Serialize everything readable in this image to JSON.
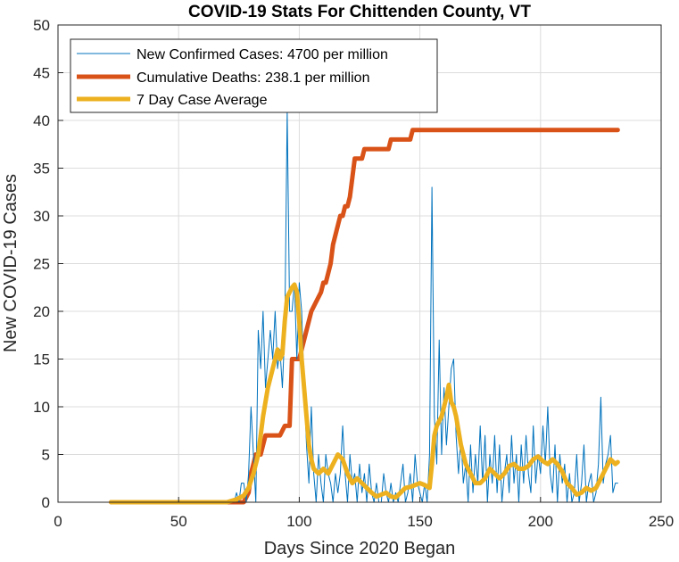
{
  "chart_data": {
    "type": "line",
    "title": "COVID-19 Stats For Chittenden County, VT",
    "xlabel": "Days Since 2020 Began",
    "ylabel": "New COVID-19 Cases",
    "xlim": [
      0,
      250
    ],
    "ylim": [
      0,
      50
    ],
    "xticks": [
      0,
      50,
      100,
      150,
      200,
      250
    ],
    "yticks": [
      0,
      5,
      10,
      15,
      20,
      25,
      30,
      35,
      40,
      45,
      50
    ],
    "grid": true,
    "legend_position": "top-left",
    "series": [
      {
        "name": "New Confirmed Cases: 4700 per million",
        "color": "#0072BD",
        "line": "thin",
        "points": [
          [
            22,
            0
          ],
          [
            30,
            0
          ],
          [
            40,
            0
          ],
          [
            50,
            0
          ],
          [
            60,
            0
          ],
          [
            70,
            0
          ],
          [
            73,
            0
          ],
          [
            74,
            1
          ],
          [
            75,
            0
          ],
          [
            76,
            2
          ],
          [
            77,
            2
          ],
          [
            78,
            0
          ],
          [
            79,
            3
          ],
          [
            80,
            10
          ],
          [
            81,
            5
          ],
          [
            82,
            0
          ],
          [
            83,
            18
          ],
          [
            84,
            14
          ],
          [
            85,
            20
          ],
          [
            86,
            12
          ],
          [
            87,
            15
          ],
          [
            88,
            18
          ],
          [
            89,
            15
          ],
          [
            90,
            20
          ],
          [
            91,
            14
          ],
          [
            92,
            16
          ],
          [
            93,
            12
          ],
          [
            94,
            18
          ],
          [
            95,
            41
          ],
          [
            96,
            20
          ],
          [
            97,
            20
          ],
          [
            98,
            23
          ],
          [
            99,
            15
          ],
          [
            100,
            23
          ],
          [
            101,
            20
          ],
          [
            102,
            12
          ],
          [
            103,
            6
          ],
          [
            104,
            2
          ],
          [
            105,
            10
          ],
          [
            106,
            3
          ],
          [
            107,
            0
          ],
          [
            108,
            5
          ],
          [
            109,
            2
          ],
          [
            110,
            0
          ],
          [
            111,
            5
          ],
          [
            112,
            3
          ],
          [
            113,
            2
          ],
          [
            114,
            0
          ],
          [
            115,
            3
          ],
          [
            116,
            1
          ],
          [
            117,
            3
          ],
          [
            118,
            8
          ],
          [
            119,
            3
          ],
          [
            120,
            0
          ],
          [
            121,
            5
          ],
          [
            122,
            2
          ],
          [
            123,
            3
          ],
          [
            124,
            0
          ],
          [
            125,
            4
          ],
          [
            126,
            1
          ],
          [
            127,
            3
          ],
          [
            128,
            0
          ],
          [
            129,
            4
          ],
          [
            130,
            1
          ],
          [
            131,
            0
          ],
          [
            132,
            2
          ],
          [
            133,
            0
          ],
          [
            134,
            0
          ],
          [
            135,
            3
          ],
          [
            136,
            1
          ],
          [
            137,
            0
          ],
          [
            138,
            2
          ],
          [
            139,
            0
          ],
          [
            140,
            1
          ],
          [
            141,
            0
          ],
          [
            142,
            2
          ],
          [
            143,
            4
          ],
          [
            144,
            0
          ],
          [
            145,
            1
          ],
          [
            146,
            3
          ],
          [
            147,
            0
          ],
          [
            148,
            5
          ],
          [
            149,
            2
          ],
          [
            150,
            1
          ],
          [
            151,
            0
          ],
          [
            152,
            2
          ],
          [
            153,
            0
          ],
          [
            154,
            5
          ],
          [
            155,
            33
          ],
          [
            156,
            9
          ],
          [
            157,
            4
          ],
          [
            158,
            17
          ],
          [
            159,
            5
          ],
          [
            160,
            12
          ],
          [
            161,
            6
          ],
          [
            162,
            10
          ],
          [
            163,
            14
          ],
          [
            164,
            15
          ],
          [
            165,
            7
          ],
          [
            166,
            3
          ],
          [
            167,
            7
          ],
          [
            168,
            2
          ],
          [
            169,
            4
          ],
          [
            170,
            0
          ],
          [
            171,
            6
          ],
          [
            172,
            1
          ],
          [
            173,
            5
          ],
          [
            174,
            2
          ],
          [
            175,
            8
          ],
          [
            176,
            2
          ],
          [
            177,
            7
          ],
          [
            178,
            0
          ],
          [
            179,
            5
          ],
          [
            180,
            2
          ],
          [
            181,
            7
          ],
          [
            182,
            1
          ],
          [
            183,
            6
          ],
          [
            184,
            0
          ],
          [
            185,
            3
          ],
          [
            186,
            5
          ],
          [
            187,
            1
          ],
          [
            188,
            7
          ],
          [
            189,
            2
          ],
          [
            190,
            5
          ],
          [
            191,
            0
          ],
          [
            192,
            6
          ],
          [
            193,
            2
          ],
          [
            194,
            7
          ],
          [
            195,
            3
          ],
          [
            196,
            1
          ],
          [
            197,
            8
          ],
          [
            198,
            2
          ],
          [
            199,
            5
          ],
          [
            200,
            3
          ],
          [
            201,
            8
          ],
          [
            202,
            4
          ],
          [
            203,
            10
          ],
          [
            204,
            3
          ],
          [
            205,
            1
          ],
          [
            206,
            6
          ],
          [
            207,
            0
          ],
          [
            208,
            5
          ],
          [
            209,
            2
          ],
          [
            210,
            4
          ],
          [
            211,
            0
          ],
          [
            212,
            3
          ],
          [
            213,
            0
          ],
          [
            214,
            1
          ],
          [
            215,
            5
          ],
          [
            216,
            0
          ],
          [
            217,
            2
          ],
          [
            218,
            6
          ],
          [
            219,
            0
          ],
          [
            220,
            2
          ],
          [
            221,
            3
          ],
          [
            222,
            0
          ],
          [
            223,
            1
          ],
          [
            224,
            4
          ],
          [
            225,
            11
          ],
          [
            226,
            2
          ],
          [
            227,
            4
          ],
          [
            228,
            5
          ],
          [
            229,
            7
          ],
          [
            230,
            1
          ],
          [
            231,
            2
          ],
          [
            232,
            2
          ]
        ]
      },
      {
        "name": "Cumulative Deaths: 238.1 per million",
        "color": "#D95319",
        "line": "thick",
        "points": [
          [
            22,
            0
          ],
          [
            77,
            0
          ],
          [
            79,
            1
          ],
          [
            80,
            3
          ],
          [
            81,
            4
          ],
          [
            82,
            5
          ],
          [
            84,
            5
          ],
          [
            85,
            6
          ],
          [
            86,
            7
          ],
          [
            90,
            7
          ],
          [
            92,
            7
          ],
          [
            94,
            8
          ],
          [
            96,
            8
          ],
          [
            97,
            15
          ],
          [
            100,
            15
          ],
          [
            101,
            16
          ],
          [
            103,
            18
          ],
          [
            105,
            20
          ],
          [
            107,
            21
          ],
          [
            109,
            22
          ],
          [
            110,
            23
          ],
          [
            111,
            23
          ],
          [
            112,
            24
          ],
          [
            113,
            25
          ],
          [
            114,
            27
          ],
          [
            116,
            29
          ],
          [
            117,
            30
          ],
          [
            118,
            30
          ],
          [
            119,
            31
          ],
          [
            120,
            31
          ],
          [
            121,
            32
          ],
          [
            122,
            34
          ],
          [
            123,
            36
          ],
          [
            124,
            36
          ],
          [
            125,
            36
          ],
          [
            126,
            36
          ],
          [
            127,
            37
          ],
          [
            128,
            37
          ],
          [
            137,
            37
          ],
          [
            138,
            38
          ],
          [
            146,
            38
          ],
          [
            147,
            39
          ],
          [
            160,
            39
          ],
          [
            180,
            39
          ],
          [
            200,
            39
          ],
          [
            220,
            39
          ],
          [
            232,
            39
          ]
        ]
      },
      {
        "name": "7 Day Case Average",
        "color": "#EDB120",
        "line": "thick",
        "points": [
          [
            22,
            0
          ],
          [
            40,
            0
          ],
          [
            60,
            0
          ],
          [
            70,
            0
          ],
          [
            74,
            0.3
          ],
          [
            77,
            0.7
          ],
          [
            79,
            1.5
          ],
          [
            81,
            3
          ],
          [
            83,
            5
          ],
          [
            85,
            9
          ],
          [
            87,
            12
          ],
          [
            89,
            14
          ],
          [
            91,
            16
          ],
          [
            92,
            15
          ],
          [
            93,
            15.5
          ],
          [
            94,
            19
          ],
          [
            95,
            21.5
          ],
          [
            96,
            22
          ],
          [
            97,
            22.5
          ],
          [
            98,
            22.8
          ],
          [
            99,
            22
          ],
          [
            100,
            19
          ],
          [
            101,
            15
          ],
          [
            102,
            12
          ],
          [
            103,
            9
          ],
          [
            104,
            6
          ],
          [
            105,
            4.5
          ],
          [
            106,
            3.5
          ],
          [
            108,
            3
          ],
          [
            110,
            3.5
          ],
          [
            112,
            3
          ],
          [
            114,
            4
          ],
          [
            116,
            5
          ],
          [
            118,
            4.5
          ],
          [
            120,
            3
          ],
          [
            122,
            2
          ],
          [
            124,
            2.5
          ],
          [
            126,
            2
          ],
          [
            128,
            1.5
          ],
          [
            130,
            1
          ],
          [
            132,
            0.6
          ],
          [
            134,
            0.8
          ],
          [
            136,
            1
          ],
          [
            138,
            0.6
          ],
          [
            140,
            0.5
          ],
          [
            142,
            1
          ],
          [
            144,
            1.5
          ],
          [
            146,
            1.6
          ],
          [
            148,
            1.8
          ],
          [
            150,
            2
          ],
          [
            152,
            1.8
          ],
          [
            154,
            1.5
          ],
          [
            155,
            4
          ],
          [
            156,
            7
          ],
          [
            157,
            8
          ],
          [
            158,
            8.5
          ],
          [
            159,
            9
          ],
          [
            160,
            10
          ],
          [
            161,
            11
          ],
          [
            162,
            12.3
          ],
          [
            163,
            10.5
          ],
          [
            164,
            10
          ],
          [
            165,
            9
          ],
          [
            167,
            6
          ],
          [
            169,
            4
          ],
          [
            171,
            3
          ],
          [
            173,
            2
          ],
          [
            175,
            2
          ],
          [
            177,
            2.5
          ],
          [
            179,
            3.5
          ],
          [
            181,
            3
          ],
          [
            183,
            2.5
          ],
          [
            185,
            3
          ],
          [
            187,
            3.8
          ],
          [
            189,
            4
          ],
          [
            191,
            3.5
          ],
          [
            193,
            3.5
          ],
          [
            195,
            3.8
          ],
          [
            197,
            4.5
          ],
          [
            199,
            4.8
          ],
          [
            201,
            4.3
          ],
          [
            203,
            4
          ],
          [
            205,
            4.5
          ],
          [
            207,
            4
          ],
          [
            209,
            3.2
          ],
          [
            211,
            2
          ],
          [
            213,
            1.5
          ],
          [
            215,
            0.8
          ],
          [
            217,
            1
          ],
          [
            219,
            1.5
          ],
          [
            221,
            1.2
          ],
          [
            223,
            1.5
          ],
          [
            225,
            2.5
          ],
          [
            227,
            3.5
          ],
          [
            229,
            4.5
          ],
          [
            231,
            4
          ],
          [
            232,
            4.2
          ]
        ]
      }
    ]
  }
}
